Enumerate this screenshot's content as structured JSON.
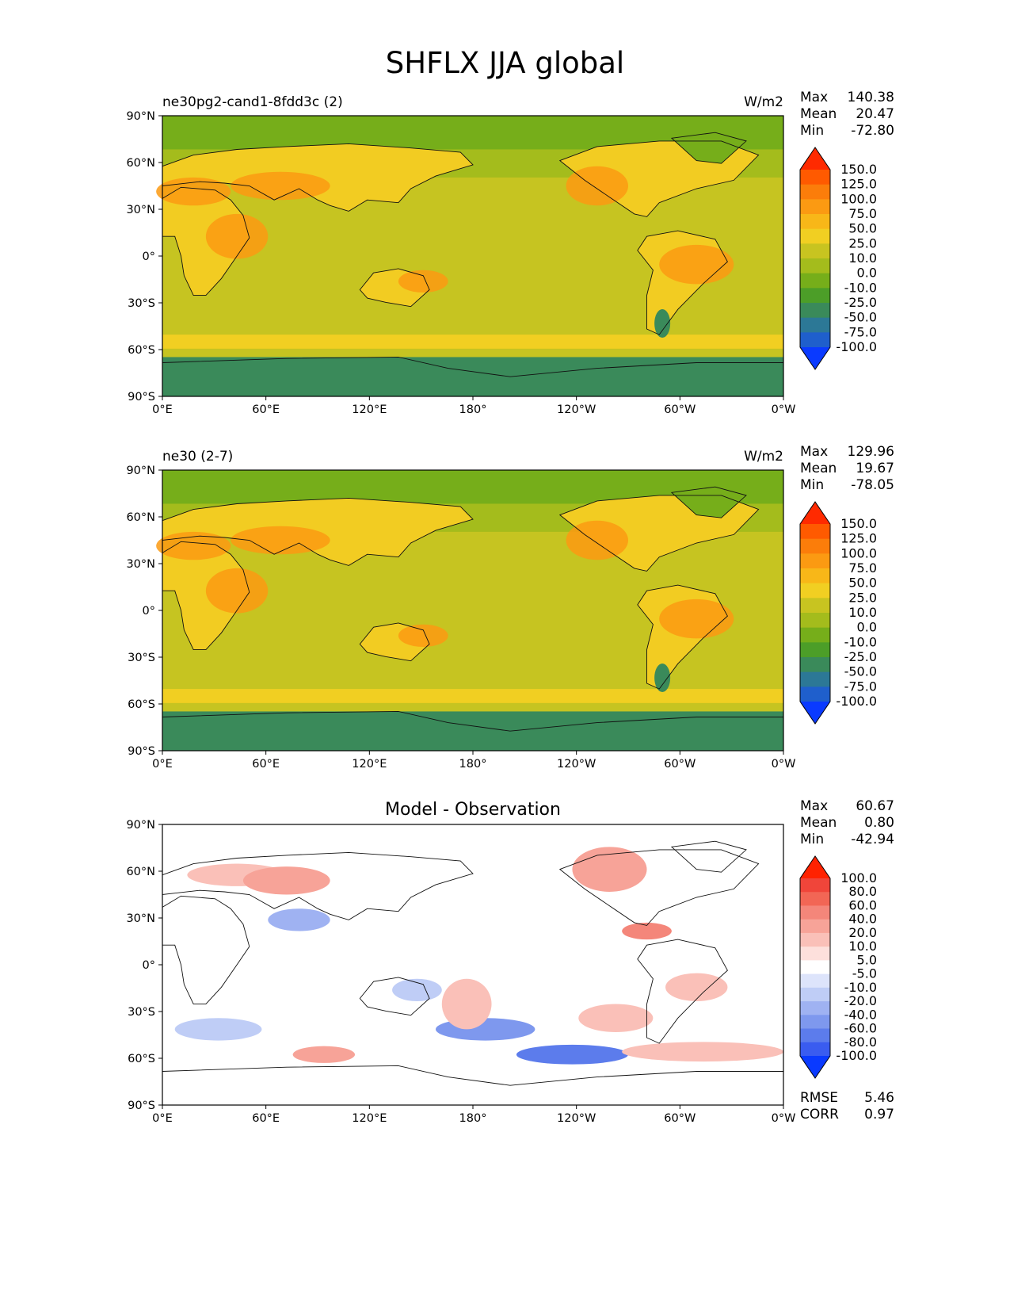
{
  "figure": {
    "title": "SHFLX JJA global"
  },
  "chart_data": [
    {
      "type": "contour-map",
      "panel": "model",
      "left_title": "ne30pg2-cand1-8fdd3c (2)",
      "center_title": "",
      "units": "W/m2",
      "stats": {
        "labels": [
          "Max",
          "Mean",
          "Min"
        ],
        "values": [
          "140.38",
          "20.47",
          "-72.80"
        ]
      },
      "colorbar": {
        "levels": [
          "150.0",
          "125.0",
          "100.0",
          "75.0",
          "50.0",
          "25.0",
          "10.0",
          "0.0",
          "-10.0",
          "-25.0",
          "-50.0",
          "-75.0",
          "-100.0"
        ],
        "colors": [
          "#ff2a00",
          "#ff5a00",
          "#fb7d0a",
          "#fb9a12",
          "#f8b718",
          "#f1cf22",
          "#c8c420",
          "#a4bc1c",
          "#76ae1a",
          "#4c9e28",
          "#3a8a5a",
          "#2c7896",
          "#1f5fcc",
          "#0a3aff"
        ]
      },
      "x_ticks": [
        "0°E",
        "60°E",
        "120°E",
        "180°",
        "120°W",
        "60°W",
        "0°W"
      ],
      "y_ticks": [
        "90°N",
        "60°N",
        "30°N",
        "0°",
        "30°S",
        "60°S",
        "90°S"
      ],
      "background": "#c6c421",
      "ocean_tone": "#c6c421",
      "land_tone": "#f2cc22"
    },
    {
      "type": "contour-map",
      "panel": "reference",
      "left_title": "ne30 (2-7)",
      "center_title": "",
      "units": "W/m2",
      "stats": {
        "labels": [
          "Max",
          "Mean",
          "Min"
        ],
        "values": [
          "129.96",
          "19.67",
          "-78.05"
        ]
      },
      "colorbar": {
        "levels": [
          "150.0",
          "125.0",
          "100.0",
          "75.0",
          "50.0",
          "25.0",
          "10.0",
          "0.0",
          "-10.0",
          "-25.0",
          "-50.0",
          "-75.0",
          "-100.0"
        ],
        "colors": [
          "#ff2a00",
          "#ff5a00",
          "#fb7d0a",
          "#fb9a12",
          "#f8b718",
          "#f1cf22",
          "#c8c420",
          "#a4bc1c",
          "#76ae1a",
          "#4c9e28",
          "#3a8a5a",
          "#2c7896",
          "#1f5fcc",
          "#0a3aff"
        ]
      },
      "x_ticks": [
        "0°E",
        "60°E",
        "120°E",
        "180°",
        "120°W",
        "60°W",
        "0°W"
      ],
      "y_ticks": [
        "90°N",
        "60°N",
        "30°N",
        "0°",
        "30°S",
        "60°S",
        "90°S"
      ],
      "background": "#c6c421",
      "ocean_tone": "#c6c421",
      "land_tone": "#f2cc22"
    },
    {
      "type": "contour-map",
      "panel": "difference",
      "left_title": "",
      "center_title": "Model - Observation",
      "units": "",
      "stats": {
        "labels": [
          "Max",
          "Mean",
          "Min"
        ],
        "values": [
          "60.67",
          "0.80",
          "-42.94"
        ]
      },
      "colorbar": {
        "levels": [
          "100.0",
          "80.0",
          "60.0",
          "40.0",
          "20.0",
          "10.0",
          "5.0",
          "-5.0",
          "-10.0",
          "-20.0",
          "-40.0",
          "-60.0",
          "-80.0",
          "-100.0"
        ],
        "colors": [
          "#ff2200",
          "#f0453a",
          "#f26655",
          "#f4867a",
          "#f7a398",
          "#fac0b8",
          "#fde0dc",
          "#ffffff",
          "#dde4fb",
          "#bfcdf6",
          "#9fb2f2",
          "#7e98ee",
          "#5c7cec",
          "#3a5cf0",
          "#0a3aff"
        ]
      },
      "x_ticks": [
        "0°E",
        "60°E",
        "120°E",
        "180°",
        "120°W",
        "60°W",
        "0°W"
      ],
      "y_ticks": [
        "90°N",
        "60°N",
        "30°N",
        "0°",
        "30°S",
        "60°S",
        "90°S"
      ],
      "background": "#ffffff",
      "ocean_tone": "#ffffff",
      "land_tone": "#ffffff",
      "metrics": {
        "labels": [
          "RMSE",
          "CORR"
        ],
        "values": [
          "5.46",
          "0.97"
        ]
      }
    }
  ]
}
